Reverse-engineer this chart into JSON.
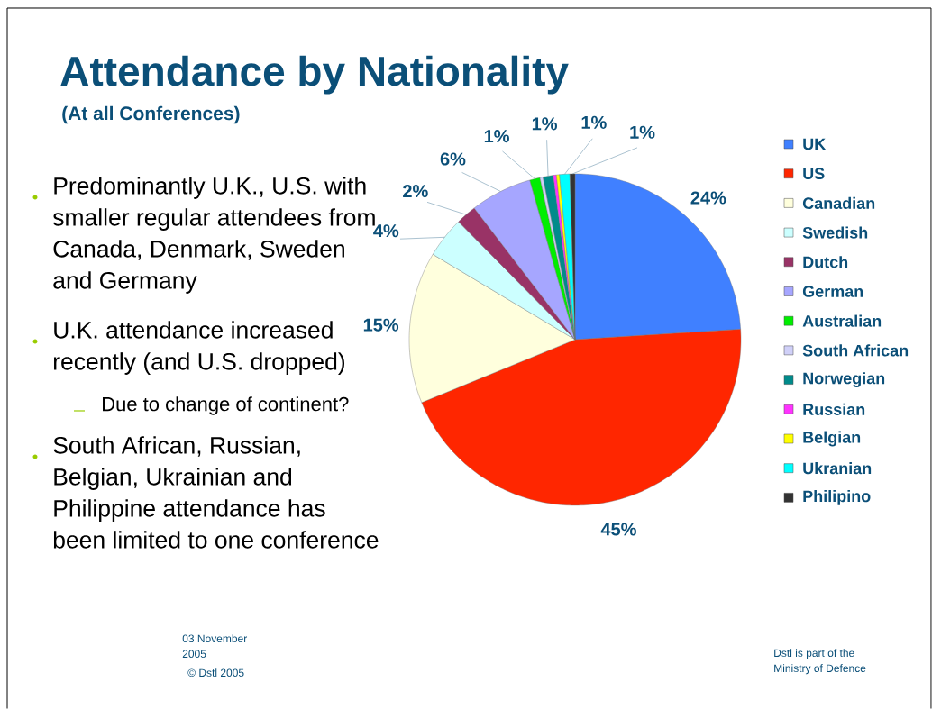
{
  "chart_data": {
    "type": "pie",
    "title": "Attendance by Nationality",
    "subtitle": "(At all Conferences)",
    "categories": [
      "UK",
      "US",
      "Canadian",
      "Swedish",
      "Dutch",
      "German",
      "Australian",
      "South African",
      "Norwegian",
      "Russian",
      "Belgian",
      "Ukranian",
      "Philipino"
    ],
    "values": [
      24,
      44.8,
      14.8,
      4,
      2,
      6,
      1,
      0.3,
      1,
      0.3,
      0.3,
      1,
      0.5
    ],
    "value_labels": [
      "24%",
      "45%",
      "15%",
      "4%",
      "2%",
      "6%",
      "1%",
      null,
      "1%",
      null,
      null,
      "1%",
      "1%"
    ],
    "colors": [
      "#4080ff",
      "#ff2600",
      "#ffffdd",
      "#ccffff",
      "#993366",
      "#a6a6ff",
      "#00ee00",
      "#d0d0f8",
      "#008b8b",
      "#ff33ff",
      "#ffff00",
      "#00ffff",
      "#333333"
    ],
    "legend": "right",
    "annotations": [
      "Predominantly U.K., U.S. with smaller regular attendees from Canada, Denmark, Sweden and Germany",
      "U.K. attendance increased recently (and U.S. dropped)",
      "Due to change of continent?",
      "South African, Russian, Belgian, Ukrainian and Philippine attendance has been limited to one conference",
      "03 November 2005",
      "© Dstl 2005",
      "Dstl is part of the Ministry of Defence"
    ]
  }
}
